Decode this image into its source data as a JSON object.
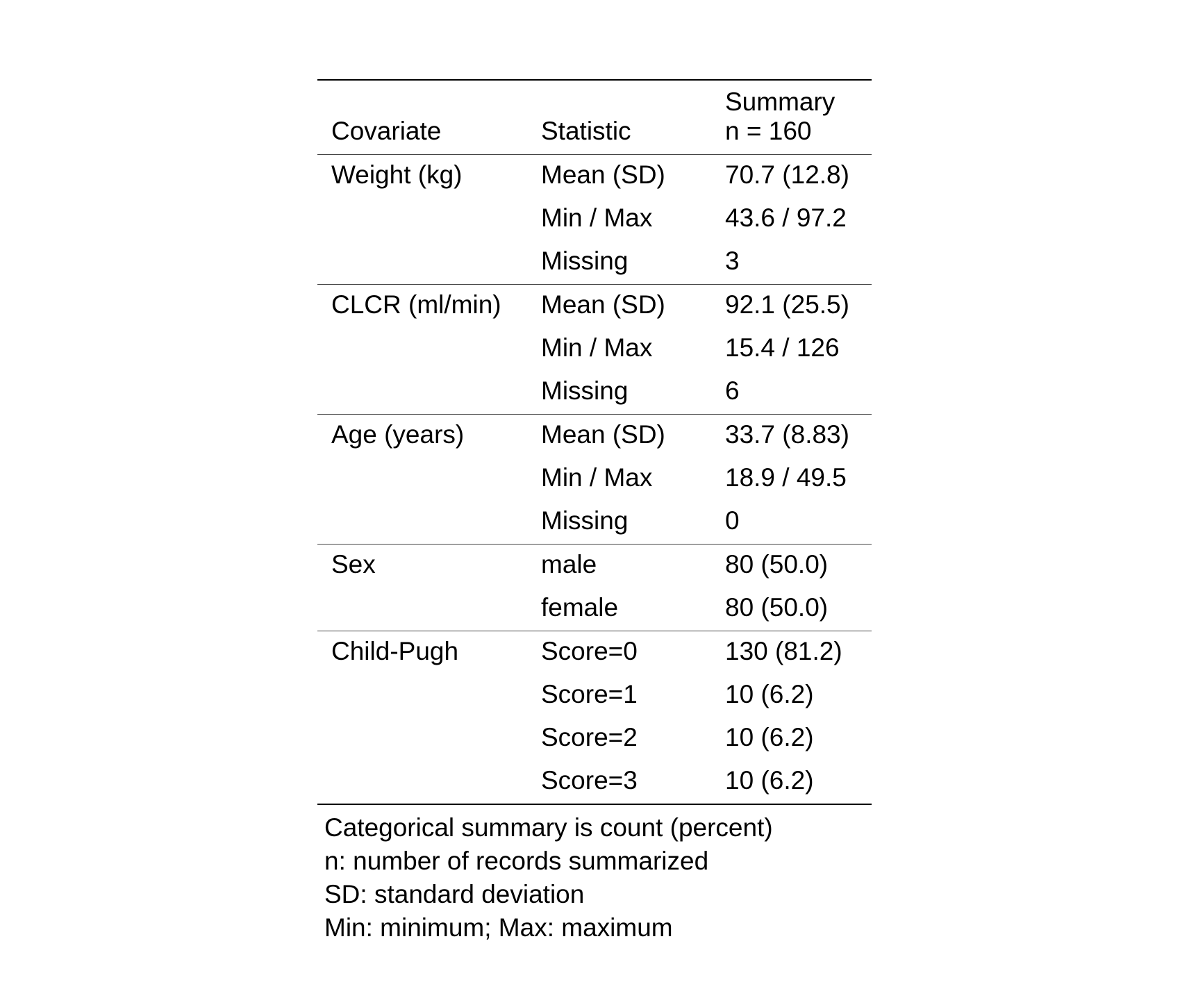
{
  "header": {
    "covariate": "Covariate",
    "statistic": "Statistic",
    "summary_line1": "Summary",
    "summary_line2": "n = 160"
  },
  "groups": [
    {
      "covariate": "Weight (kg)",
      "rows": [
        {
          "statistic": "Mean (SD)",
          "summary": "70.7 (12.8)"
        },
        {
          "statistic": "Min / Max",
          "summary": "43.6 / 97.2"
        },
        {
          "statistic": "Missing",
          "summary": "3"
        }
      ]
    },
    {
      "covariate": "CLCR (ml/min)",
      "rows": [
        {
          "statistic": "Mean (SD)",
          "summary": "92.1 (25.5)"
        },
        {
          "statistic": "Min / Max",
          "summary": "15.4 / 126"
        },
        {
          "statistic": "Missing",
          "summary": "6"
        }
      ]
    },
    {
      "covariate": "Age (years)",
      "rows": [
        {
          "statistic": "Mean (SD)",
          "summary": "33.7 (8.83)"
        },
        {
          "statistic": "Min / Max",
          "summary": "18.9 / 49.5"
        },
        {
          "statistic": "Missing",
          "summary": "0"
        }
      ]
    },
    {
      "covariate": "Sex",
      "rows": [
        {
          "statistic": "male",
          "summary": "80 (50.0)"
        },
        {
          "statistic": "female",
          "summary": "80 (50.0)"
        }
      ]
    },
    {
      "covariate": "Child-Pugh",
      "rows": [
        {
          "statistic": "Score=0",
          "summary": "130 (81.2)"
        },
        {
          "statistic": "Score=1",
          "summary": "10 (6.2)"
        },
        {
          "statistic": "Score=2",
          "summary": "10 (6.2)"
        },
        {
          "statistic": "Score=3",
          "summary": "10 (6.2)"
        }
      ]
    }
  ],
  "footnotes": [
    "Categorical summary is count (percent)",
    "n: number of records summarized",
    "SD: standard deviation",
    "Min: minimum; Max: maximum"
  ]
}
